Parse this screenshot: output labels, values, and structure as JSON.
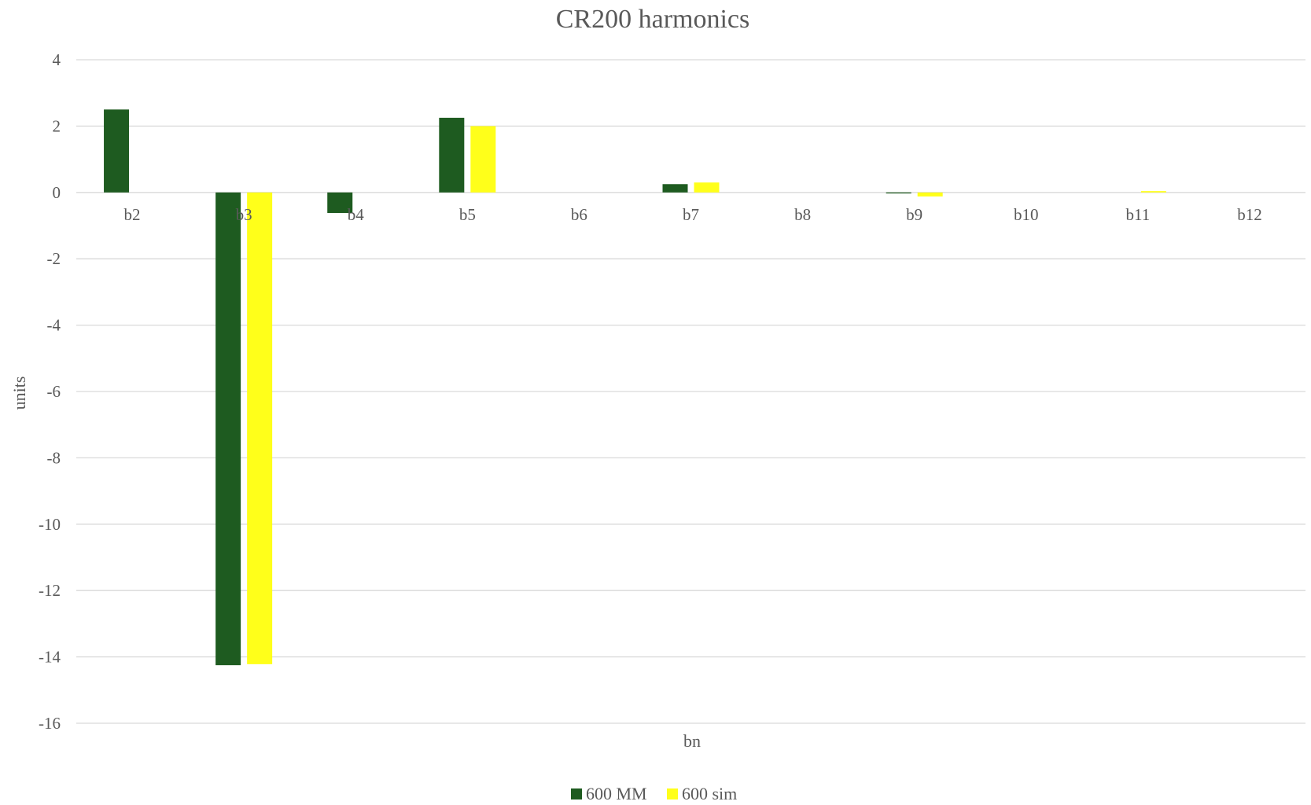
{
  "chart_data": {
    "type": "bar",
    "title": "CR200 harmonics",
    "xlabel": "bn",
    "ylabel": "units",
    "ylim": [
      -16,
      4
    ],
    "yticks": [
      4,
      2,
      0,
      -2,
      -4,
      -6,
      -8,
      -10,
      -12,
      -14,
      -16
    ],
    "grid": true,
    "legend_position": "bottom",
    "categories": [
      "b2",
      "b3",
      "b4",
      "b5",
      "b6",
      "b7",
      "b8",
      "b9",
      "b10",
      "b11",
      "b12"
    ],
    "series": [
      {
        "name": "600 MM",
        "color": "#1e5b20",
        "values": [
          2.5,
          -14.25,
          -0.62,
          2.25,
          0.0,
          0.25,
          0.0,
          -0.03,
          0.0,
          0.0,
          0.0
        ]
      },
      {
        "name": "600 sim",
        "color": "#ffff1a",
        "values": [
          0.0,
          -14.22,
          0.0,
          2.0,
          0.0,
          0.3,
          0.0,
          -0.12,
          0.0,
          0.04,
          0.0
        ]
      }
    ]
  }
}
